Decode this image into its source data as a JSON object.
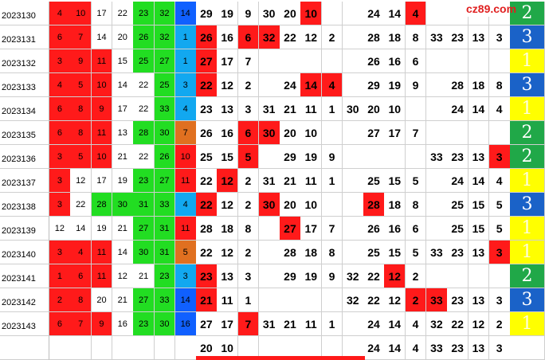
{
  "logo": "cz89.com",
  "rows": [
    {
      "label": "2023130",
      "left": [
        4,
        10,
        17,
        22,
        23,
        32,
        14
      ],
      "left_fill": [
        "red",
        "red",
        "white",
        "white",
        "green",
        "green",
        "blue"
      ],
      "right": [
        29,
        19,
        9,
        30,
        20,
        10,
        null,
        null,
        24,
        14,
        4,
        null,
        null,
        null,
        null
      ],
      "right_red": [
        5,
        10
      ],
      "last": 2,
      "last_fill": "green"
    },
    {
      "label": "2023131",
      "left": [
        6,
        7,
        14,
        20,
        26,
        32,
        1
      ],
      "left_fill": [
        "red",
        "red",
        "white",
        "white",
        "green",
        "green",
        "cyan"
      ],
      "right": [
        26,
        16,
        6,
        32,
        22,
        12,
        2,
        null,
        28,
        18,
        8,
        33,
        23,
        13,
        3
      ],
      "right_red": [
        0,
        2,
        3
      ],
      "last": 3,
      "last_fill": "blue"
    },
    {
      "label": "2023132",
      "left": [
        3,
        9,
        11,
        15,
        25,
        27,
        1
      ],
      "left_fill": [
        "red",
        "red",
        "red",
        "white",
        "green",
        "green",
        "cyan"
      ],
      "right": [
        27,
        17,
        7,
        null,
        null,
        null,
        null,
        null,
        26,
        16,
        6,
        null,
        null,
        null,
        null
      ],
      "right_red": [
        0
      ],
      "last": 1,
      "last_fill": "yellow"
    },
    {
      "label": "2023133",
      "left": [
        4,
        5,
        10,
        14,
        22,
        25,
        3
      ],
      "left_fill": [
        "red",
        "red",
        "red",
        "white",
        "white",
        "green",
        "cyan"
      ],
      "right": [
        22,
        12,
        2,
        null,
        24,
        14,
        4,
        null,
        29,
        19,
        9,
        null,
        28,
        18,
        8
      ],
      "right_red": [
        0,
        5,
        6
      ],
      "last": 3,
      "last_fill": "blue"
    },
    {
      "label": "2023134",
      "left": [
        6,
        8,
        9,
        17,
        22,
        33,
        4
      ],
      "left_fill": [
        "red",
        "red",
        "red",
        "white",
        "white",
        "green",
        "cyan"
      ],
      "right": [
        23,
        13,
        3,
        31,
        21,
        11,
        1,
        30,
        20,
        10,
        null,
        null,
        24,
        14,
        4
      ],
      "right_red": [],
      "last": 1,
      "last_fill": "yellow"
    },
    {
      "label": "2023135",
      "left": [
        6,
        8,
        11,
        13,
        28,
        30,
        7
      ],
      "left_fill": [
        "red",
        "red",
        "red",
        "white",
        "green",
        "green",
        "orange"
      ],
      "right": [
        26,
        16,
        6,
        30,
        20,
        10,
        null,
        null,
        27,
        17,
        7,
        null,
        null,
        null,
        null
      ],
      "right_red": [
        2,
        3
      ],
      "last": 2,
      "last_fill": "green"
    },
    {
      "label": "2023136",
      "left": [
        3,
        5,
        10,
        21,
        22,
        26,
        10
      ],
      "left_fill": [
        "red",
        "red",
        "red",
        "white",
        "white",
        "green",
        "red"
      ],
      "right": [
        25,
        15,
        5,
        null,
        29,
        19,
        9,
        null,
        null,
        null,
        null,
        33,
        23,
        13,
        3
      ],
      "right_red": [
        2,
        14
      ],
      "last": 2,
      "last_fill": "green"
    },
    {
      "label": "2023137",
      "left": [
        3,
        12,
        17,
        19,
        23,
        27,
        11
      ],
      "left_fill": [
        "red",
        "white",
        "white",
        "white",
        "green",
        "green",
        "red"
      ],
      "right": [
        22,
        12,
        2,
        31,
        21,
        11,
        1,
        null,
        25,
        15,
        5,
        null,
        24,
        14,
        4
      ],
      "right_red": [
        1
      ],
      "last": 1,
      "last_fill": "yellow"
    },
    {
      "label": "2023138",
      "left": [
        3,
        22,
        28,
        30,
        31,
        33,
        4
      ],
      "left_fill": [
        "red",
        "white",
        "green",
        "green",
        "green",
        "green",
        "cyan"
      ],
      "right": [
        22,
        12,
        2,
        30,
        20,
        10,
        null,
        null,
        28,
        18,
        8,
        null,
        25,
        15,
        5
      ],
      "right_red": [
        0,
        3,
        8
      ],
      "last": 3,
      "last_fill": "blue"
    },
    {
      "label": "2023139",
      "left": [
        12,
        14,
        19,
        21,
        27,
        31,
        11
      ],
      "left_fill": [
        "white",
        "white",
        "white",
        "white",
        "green",
        "green",
        "red"
      ],
      "right": [
        28,
        18,
        8,
        null,
        27,
        17,
        7,
        null,
        26,
        16,
        6,
        null,
        25,
        15,
        5
      ],
      "right_red": [
        4
      ],
      "last": 1,
      "last_fill": "yellow"
    },
    {
      "label": "2023140",
      "left": [
        3,
        4,
        11,
        14,
        30,
        31,
        5
      ],
      "left_fill": [
        "red",
        "red",
        "red",
        "white",
        "green",
        "green",
        "orange"
      ],
      "right": [
        22,
        12,
        2,
        null,
        28,
        18,
        8,
        null,
        25,
        15,
        5,
        33,
        23,
        13,
        3
      ],
      "right_red": [
        14
      ],
      "last": 1,
      "last_fill": "yellow"
    },
    {
      "label": "2023141",
      "left": [
        1,
        6,
        11,
        12,
        21,
        23,
        3
      ],
      "left_fill": [
        "red",
        "red",
        "red",
        "white",
        "white",
        "green",
        "cyan"
      ],
      "right": [
        23,
        13,
        3,
        null,
        29,
        19,
        9,
        32,
        22,
        12,
        2,
        null,
        null,
        null,
        null
      ],
      "right_red": [
        0,
        9
      ],
      "last": 2,
      "last_fill": "green"
    },
    {
      "label": "2023142",
      "left": [
        2,
        8,
        20,
        21,
        27,
        33,
        14
      ],
      "left_fill": [
        "red",
        "red",
        "white",
        "white",
        "green",
        "green",
        "blue"
      ],
      "right": [
        21,
        11,
        1,
        null,
        null,
        null,
        null,
        32,
        22,
        12,
        2,
        33,
        23,
        13,
        3
      ],
      "right_red": [
        0,
        10,
        11
      ],
      "last": 3,
      "last_fill": "blue"
    },
    {
      "label": "2023143",
      "left": [
        6,
        7,
        9,
        16,
        23,
        30,
        16
      ],
      "left_fill": [
        "red",
        "red",
        "red",
        "white",
        "green",
        "green",
        "blue"
      ],
      "right": [
        27,
        17,
        7,
        31,
        21,
        11,
        1,
        null,
        24,
        14,
        4,
        32,
        22,
        12,
        2
      ],
      "right_red": [
        2
      ],
      "last": 1,
      "last_fill": "yellow"
    }
  ],
  "footer": {
    "right": [
      20,
      10,
      null,
      null,
      null,
      null,
      null,
      null,
      24,
      14,
      4,
      33,
      23,
      13,
      3
    ]
  }
}
